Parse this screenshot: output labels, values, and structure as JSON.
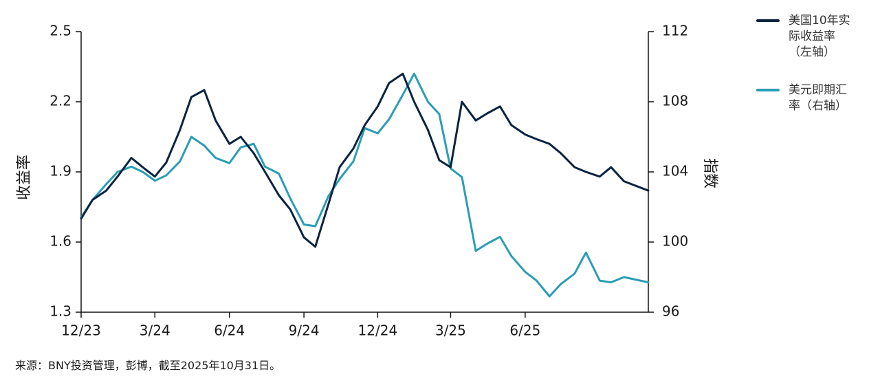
{
  "chart_data": {
    "type": "line",
    "x_tick_labels": [
      "12/23",
      "3/24",
      "6/24",
      "9/24",
      "12/24",
      "3/25",
      "6/25"
    ],
    "x_range": [
      "2023-12-01",
      "2025-10-31"
    ],
    "left_axis": {
      "label": "收益率",
      "range": [
        1.3,
        2.5
      ],
      "ticks": [
        1.3,
        1.6,
        1.9,
        2.2,
        2.5
      ],
      "tick_labels": [
        "1.3",
        "1.6",
        "1.9",
        "2.2",
        "2.5"
      ]
    },
    "right_axis": {
      "label": "指数",
      "range": [
        96,
        112
      ],
      "ticks": [
        96,
        100,
        104,
        108,
        112
      ],
      "tick_labels": [
        "96",
        "100",
        "104",
        "108",
        "112"
      ]
    },
    "legend_position": "top-right",
    "grid": false,
    "series": [
      {
        "name": "美国10年实际收益率（左轴）",
        "legend_lines": [
          "美国10年实",
          "际收益率",
          "（左轴）"
        ],
        "axis": "left",
        "color": "#0b2340",
        "points": [
          [
            "2023-12-01",
            1.7
          ],
          [
            "2023-12-15",
            1.78
          ],
          [
            "2024-01-01",
            1.82
          ],
          [
            "2024-01-15",
            1.88
          ],
          [
            "2024-02-01",
            1.96
          ],
          [
            "2024-02-15",
            1.92
          ],
          [
            "2024-03-01",
            1.88
          ],
          [
            "2024-03-15",
            1.94
          ],
          [
            "2024-04-01",
            2.08
          ],
          [
            "2024-04-15",
            2.22
          ],
          [
            "2024-05-01",
            2.25
          ],
          [
            "2024-05-15",
            2.12
          ],
          [
            "2024-06-01",
            2.02
          ],
          [
            "2024-06-15",
            2.05
          ],
          [
            "2024-07-01",
            1.98
          ],
          [
            "2024-07-15",
            1.9
          ],
          [
            "2024-08-01",
            1.8
          ],
          [
            "2024-08-15",
            1.74
          ],
          [
            "2024-09-01",
            1.62
          ],
          [
            "2024-09-15",
            1.58
          ],
          [
            "2024-10-01",
            1.76
          ],
          [
            "2024-10-15",
            1.92
          ],
          [
            "2024-11-01",
            2.0
          ],
          [
            "2024-11-15",
            2.1
          ],
          [
            "2024-12-01",
            2.18
          ],
          [
            "2024-12-15",
            2.28
          ],
          [
            "2025-01-01",
            2.32
          ],
          [
            "2025-01-15",
            2.2
          ],
          [
            "2025-02-01",
            2.08
          ],
          [
            "2025-02-15",
            1.95
          ],
          [
            "2025-03-01",
            1.92
          ],
          [
            "2025-03-15",
            2.2
          ],
          [
            "2025-04-01",
            2.12
          ],
          [
            "2025-04-15",
            2.15
          ],
          [
            "2025-05-01",
            2.18
          ],
          [
            "2025-05-15",
            2.1
          ],
          [
            "2025-06-01",
            2.06
          ],
          [
            "2025-06-15",
            2.04
          ],
          [
            "2025-07-01",
            2.02
          ],
          [
            "2025-07-15",
            1.98
          ],
          [
            "2025-08-01",
            1.92
          ],
          [
            "2025-08-15",
            1.9
          ],
          [
            "2025-09-01",
            1.88
          ],
          [
            "2025-09-15",
            1.92
          ],
          [
            "2025-10-01",
            1.86
          ],
          [
            "2025-10-31",
            1.82
          ]
        ]
      },
      {
        "name": "美元即期汇率（右轴）",
        "legend_lines": [
          "美元即期汇",
          "率（右轴）"
        ],
        "axis": "right",
        "color": "#2a9db5",
        "points": [
          [
            "2023-12-01",
            101.4
          ],
          [
            "2023-12-15",
            102.4
          ],
          [
            "2024-01-01",
            103.3
          ],
          [
            "2024-01-15",
            104.0
          ],
          [
            "2024-02-01",
            104.3
          ],
          [
            "2024-02-15",
            104.0
          ],
          [
            "2024-03-01",
            103.5
          ],
          [
            "2024-03-15",
            103.8
          ],
          [
            "2024-04-01",
            104.6
          ],
          [
            "2024-04-15",
            106.0
          ],
          [
            "2024-05-01",
            105.5
          ],
          [
            "2024-05-15",
            104.8
          ],
          [
            "2024-06-01",
            104.5
          ],
          [
            "2024-06-15",
            105.4
          ],
          [
            "2024-07-01",
            105.6
          ],
          [
            "2024-07-15",
            104.3
          ],
          [
            "2024-08-01",
            103.9
          ],
          [
            "2024-08-15",
            102.5
          ],
          [
            "2024-09-01",
            101.0
          ],
          [
            "2024-09-15",
            100.9
          ],
          [
            "2024-10-01",
            102.6
          ],
          [
            "2024-10-15",
            103.6
          ],
          [
            "2024-11-01",
            104.6
          ],
          [
            "2024-11-15",
            106.5
          ],
          [
            "2024-12-01",
            106.2
          ],
          [
            "2024-12-15",
            107.0
          ],
          [
            "2025-01-01",
            108.4
          ],
          [
            "2025-01-15",
            109.6
          ],
          [
            "2025-02-01",
            108.0
          ],
          [
            "2025-02-15",
            107.3
          ],
          [
            "2025-03-01",
            104.2
          ],
          [
            "2025-03-15",
            103.7
          ],
          [
            "2025-04-01",
            99.5
          ],
          [
            "2025-04-15",
            99.9
          ],
          [
            "2025-05-01",
            100.3
          ],
          [
            "2025-05-15",
            99.2
          ],
          [
            "2025-06-01",
            98.3
          ],
          [
            "2025-06-15",
            97.8
          ],
          [
            "2025-07-01",
            96.9
          ],
          [
            "2025-07-15",
            97.6
          ],
          [
            "2025-08-01",
            98.2
          ],
          [
            "2025-08-15",
            99.4
          ],
          [
            "2025-09-01",
            97.8
          ],
          [
            "2025-09-15",
            97.7
          ],
          [
            "2025-10-01",
            98.0
          ],
          [
            "2025-10-31",
            97.7
          ]
        ]
      }
    ]
  },
  "source": "来源：BNY投资管理，彭博，截至2025年10月31日。"
}
